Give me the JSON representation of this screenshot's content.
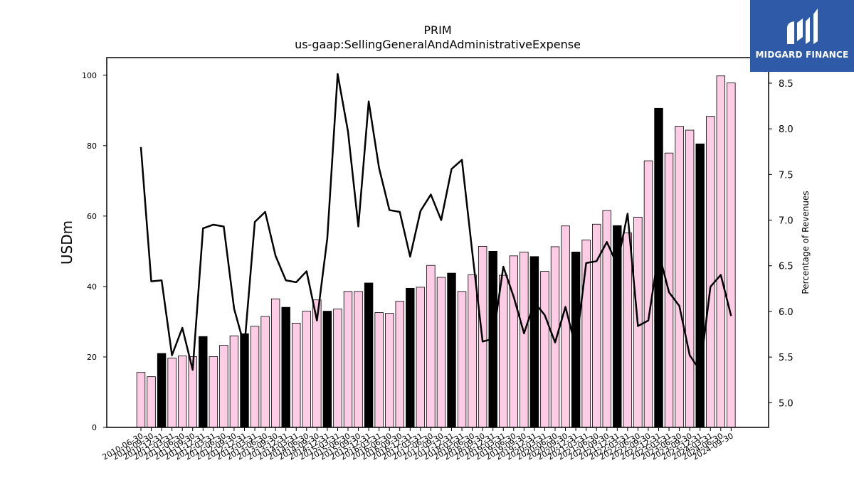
{
  "chart_data": {
    "type": "bar",
    "title": "PRIM",
    "subtitle": "us-gaap:SellingGeneralAndAdministrativeExpense",
    "ylabel": "USDm",
    "y2label": "Percentage of Revenues",
    "ylim": [
      0,
      105
    ],
    "y2lim": [
      4.73,
      8.78
    ],
    "yticks": [
      0,
      20,
      40,
      60,
      80,
      100
    ],
    "y2ticks": [
      5.0,
      5.5,
      6.0,
      6.5,
      7.0,
      7.5,
      8.0,
      8.5
    ],
    "grid": false,
    "legend": "none",
    "bar_colors": {
      "quarter": "#ffcce6",
      "fiscal_year_end": "#000000",
      "edge": "#000000"
    },
    "line_color": "#000000",
    "categories": [
      "2010-06-30",
      "2010-09-30",
      "2010-12-31",
      "2011-03-31",
      "2011-06-30",
      "2011-09-30",
      "2011-12-31",
      "2012-03-31",
      "2012-06-30",
      "2012-09-30",
      "2012-12-31",
      "2013-03-31",
      "2013-06-30",
      "2013-09-30",
      "2013-12-31",
      "2014-03-31",
      "2014-06-30",
      "2014-09-30",
      "2014-12-31",
      "2015-03-31",
      "2015-06-30",
      "2015-09-30",
      "2015-12-31",
      "2016-03-31",
      "2016-06-30",
      "2016-09-30",
      "2016-12-31",
      "2017-03-31",
      "2017-06-30",
      "2017-09-30",
      "2017-12-31",
      "2018-03-31",
      "2018-06-30",
      "2018-09-30",
      "2018-12-31",
      "2019-03-31",
      "2019-06-30",
      "2019-09-30",
      "2019-12-31",
      "2020-03-31",
      "2020-06-30",
      "2020-09-30",
      "2020-12-31",
      "2021-03-31",
      "2021-06-30",
      "2021-09-30",
      "2021-12-31",
      "2022-03-31",
      "2022-06-30",
      "2022-09-30",
      "2022-12-31",
      "2023-03-31",
      "2023-06-30",
      "2023-09-30",
      "2023-12-31",
      "2024-03-31",
      "2024-06-30",
      "2024-09-30"
    ],
    "tick_labels": [
      "2010-06-30",
      "2010-09-30",
      "2010-12-31",
      "2011-03-31",
      "2011-06-30",
      "2011-09-30",
      "2011-12-31",
      "2012-03-31",
      "2012-06-30",
      "2012-09-30",
      "2012-12-31",
      "2013-03-31",
      "2013-06-30",
      "2013-09-30",
      "2013-12-31",
      "2014-03-31",
      "2014-06-30",
      "2014-09-30",
      "2014-12-31",
      "2015-03-31",
      "2015-06-30",
      "2015-09-30",
      "2015-12-31",
      "2016-03-31",
      "2016-06-30",
      "2016-09-30",
      "2016-12-31",
      "2017-03-31",
      "2017-06-30",
      "2017-09-30",
      "2017-12-31",
      "2018-03-31",
      "2018-06-30",
      "2018-09-30",
      "2018-12-31",
      "2019-03-31",
      "2019-06-30",
      "2019-09-30",
      "2019-12-31",
      "2020-03-31",
      "2020-06-30",
      "2020-09-30",
      "2020-12-31",
      "2021-03-31",
      "2021-06-30",
      "2021-09-30",
      "2021-12-31",
      "2022-03-31",
      "2022-06-30",
      "2022-09-30",
      "2022-12-31",
      "2023-03-31",
      "2023-06-30",
      "2023-09-30",
      "2023-12-31",
      "2024-03-31",
      "2024-06-30",
      "2024-09-30"
    ],
    "series": [
      {
        "kind": "bar",
        "axis": "left",
        "values": [
          15.6,
          14.4,
          21.0,
          19.7,
          20.3,
          20.1,
          25.8,
          20.1,
          23.3,
          26.0,
          26.6,
          28.7,
          31.5,
          36.5,
          34.1,
          29.6,
          33.0,
          36.2,
          33.0,
          33.6,
          38.6,
          38.6,
          41.0,
          32.6,
          32.4,
          35.8,
          39.5,
          39.8,
          46.0,
          42.6,
          43.8,
          38.6,
          43.3,
          51.4,
          50.0,
          43.2,
          48.7,
          49.8,
          48.5,
          44.3,
          51.3,
          57.2,
          49.8,
          53.2,
          57.7,
          61.6,
          57.3,
          55.2,
          59.7,
          75.7,
          90.6,
          77.9,
          85.5,
          84.4,
          80.5,
          88.3,
          99.8,
          97.8
        ],
        "fiscal_year_end": [
          false,
          false,
          true,
          false,
          false,
          false,
          true,
          false,
          false,
          false,
          true,
          false,
          false,
          false,
          true,
          false,
          false,
          false,
          true,
          false,
          false,
          false,
          true,
          false,
          false,
          false,
          true,
          false,
          false,
          false,
          true,
          false,
          false,
          false,
          true,
          false,
          false,
          false,
          true,
          false,
          false,
          false,
          true,
          false,
          false,
          false,
          true,
          false,
          false,
          false,
          true,
          false,
          false,
          false,
          true,
          false,
          false,
          false
        ]
      },
      {
        "kind": "line",
        "axis": "right",
        "values": [
          7.8,
          6.33,
          6.34,
          5.52,
          5.82,
          5.36,
          6.91,
          6.95,
          6.93,
          6.03,
          5.62,
          6.98,
          7.09,
          6.61,
          6.34,
          6.32,
          6.44,
          5.9,
          6.8,
          8.6,
          7.97,
          6.93,
          8.3,
          7.57,
          7.11,
          7.09,
          6.6,
          7.1,
          7.28,
          7.0,
          7.56,
          7.66,
          6.65,
          5.67,
          5.7,
          6.49,
          6.16,
          5.76,
          6.1,
          5.96,
          5.66,
          6.05,
          5.6,
          6.53,
          6.55,
          6.76,
          6.51,
          7.07,
          5.84,
          5.9,
          6.65,
          6.21,
          6.06,
          5.52,
          5.35,
          6.27,
          6.4,
          5.95
        ]
      }
    ]
  },
  "logo": {
    "text": "MIDGARD FINANCE"
  }
}
